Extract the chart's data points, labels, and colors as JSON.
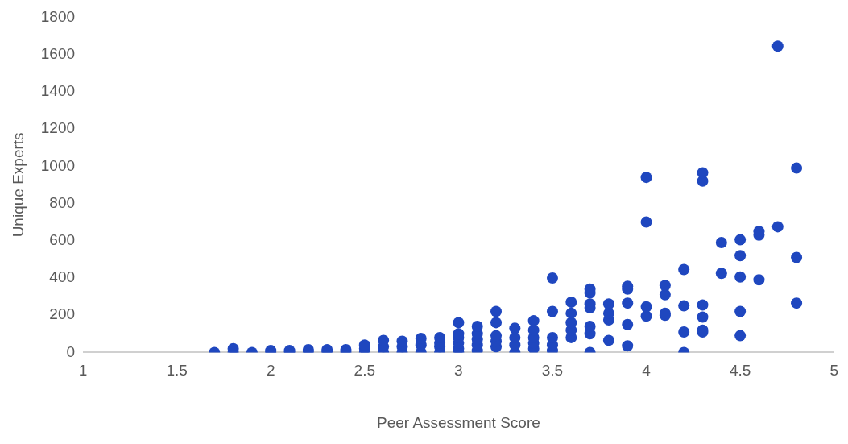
{
  "chart_data": {
    "type": "scatter",
    "xlabel": "Peer Assessment Score",
    "ylabel": "Unique Experts",
    "xlim": [
      1,
      5
    ],
    "xticks": [
      1,
      1.5,
      2,
      2.5,
      3,
      3.5,
      4,
      4.5,
      5
    ],
    "ylim": [
      0,
      1800
    ],
    "yticks": [
      0,
      200,
      400,
      600,
      800,
      1000,
      1200,
      1400,
      1600,
      1800
    ],
    "grid": false,
    "legend": false,
    "marker": "circle",
    "series": [
      {
        "color": "#1f47bf",
        "x": [
          1.7,
          1.8,
          1.8,
          1.9,
          2.0,
          2.0,
          2.1,
          2.1,
          2.2,
          2.2,
          2.3,
          2.3,
          2.4,
          2.4,
          2.5,
          2.5,
          2.5,
          2.6,
          2.6,
          2.6,
          2.7,
          2.7,
          2.7,
          2.8,
          2.8,
          2.8,
          2.9,
          2.9,
          2.9,
          2.9,
          3.0,
          3.0,
          3.0,
          3.0,
          3.0,
          3.0,
          3.1,
          3.1,
          3.1,
          3.1,
          3.1,
          3.2,
          3.2,
          3.2,
          3.2,
          3.2,
          3.3,
          3.3,
          3.3,
          3.3,
          3.4,
          3.4,
          3.4,
          3.4,
          3.4,
          3.5,
          3.5,
          3.5,
          3.5,
          3.5,
          3.6,
          3.6,
          3.6,
          3.6,
          3.6,
          3.7,
          3.7,
          3.7,
          3.7,
          3.7,
          3.7,
          3.7,
          3.8,
          3.8,
          3.8,
          3.8,
          3.9,
          3.9,
          3.9,
          3.9,
          3.9,
          4.0,
          4.0,
          4.0,
          4.0,
          4.1,
          4.1,
          4.1,
          4.1,
          4.2,
          4.2,
          4.2,
          4.2,
          4.3,
          4.3,
          4.3,
          4.3,
          4.3,
          4.3,
          4.4,
          4.4,
          4.5,
          4.5,
          4.5,
          4.5,
          4.5,
          4.6,
          4.6,
          4.6,
          4.7,
          4.7,
          4.8,
          4.8,
          4.8
        ],
        "values": [
          0,
          0,
          20,
          0,
          0,
          10,
          0,
          10,
          0,
          15,
          0,
          15,
          0,
          15,
          0,
          20,
          40,
          0,
          30,
          65,
          0,
          30,
          60,
          0,
          40,
          75,
          0,
          30,
          50,
          80,
          0,
          20,
          50,
          80,
          100,
          160,
          10,
          40,
          70,
          100,
          140,
          30,
          60,
          90,
          160,
          220,
          0,
          40,
          80,
          130,
          20,
          50,
          80,
          120,
          170,
          10,
          40,
          80,
          220,
          400,
          80,
          120,
          160,
          210,
          270,
          0,
          100,
          140,
          240,
          260,
          320,
          340,
          65,
          175,
          210,
          260,
          35,
          150,
          265,
          340,
          355,
          195,
          245,
          700,
          940,
          200,
          210,
          310,
          360,
          0,
          110,
          250,
          445,
          110,
          120,
          190,
          255,
          920,
          965,
          425,
          590,
          90,
          220,
          405,
          520,
          605,
          390,
          630,
          650,
          675,
          1645,
          265,
          510,
          990
        ]
      }
    ]
  }
}
